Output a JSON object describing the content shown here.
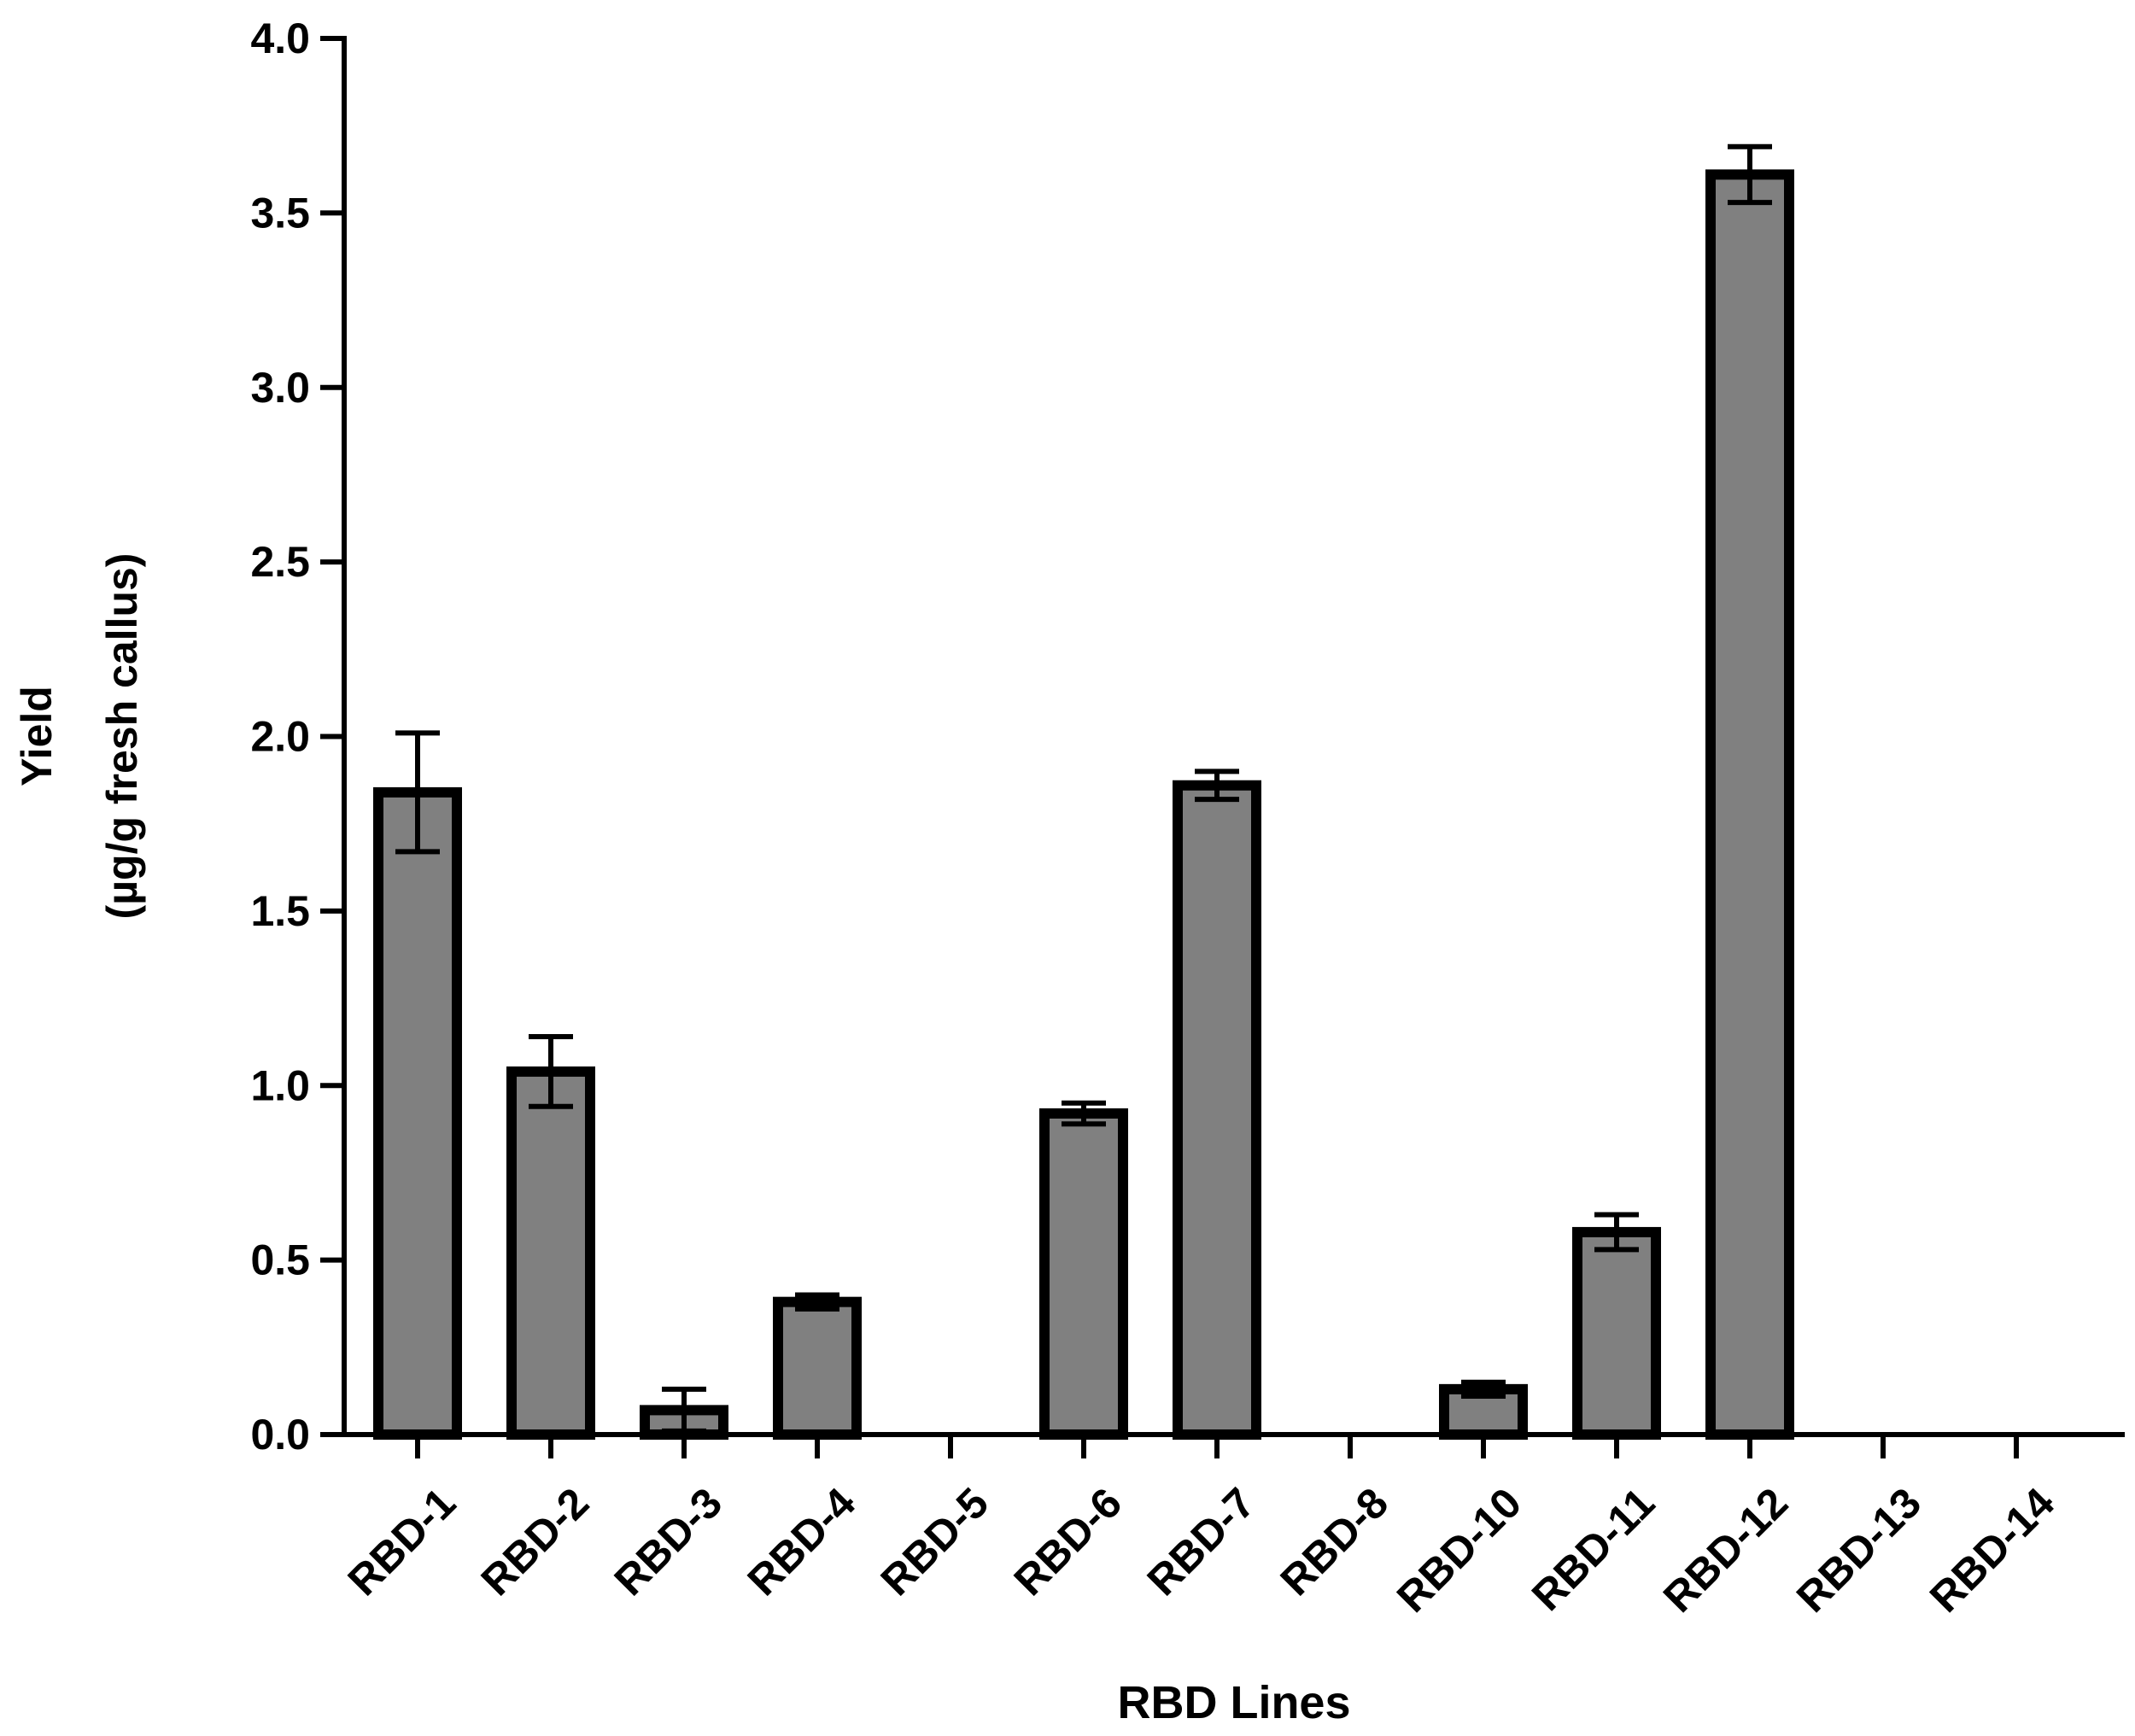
{
  "chart_data": {
    "type": "bar",
    "title": "",
    "xlabel": "RBD Lines",
    "ylabel_line1": "Yield",
    "ylabel_line2": "(µg/g fresh callus)",
    "ylim": [
      0,
      4.0
    ],
    "yticks": [
      "0.0",
      "0.5",
      "1.0",
      "1.5",
      "2.0",
      "2.5",
      "3.0",
      "3.5",
      "4.0"
    ],
    "categories": [
      "RBD-1",
      "RBD-2",
      "RBD-3",
      "RBD-4",
      "RBD-5",
      "RBD-6",
      "RBD-7",
      "RBD-8",
      "RBD-10",
      "RBD-11",
      "RBD-12",
      "RBD-13",
      "RBD-14"
    ],
    "values": [
      1.84,
      1.04,
      0.07,
      0.38,
      0,
      0.92,
      1.86,
      0,
      0.13,
      0.58,
      3.61,
      0,
      0
    ],
    "errors": [
      0.17,
      0.1,
      0.06,
      0.02,
      0,
      0.03,
      0.04,
      0,
      0.02,
      0.05,
      0.08,
      0,
      0
    ],
    "colors": {
      "bar_fill": "#808080",
      "bar_stroke": "#000000",
      "axis": "#000000"
    },
    "grid": false,
    "legend": "none"
  }
}
